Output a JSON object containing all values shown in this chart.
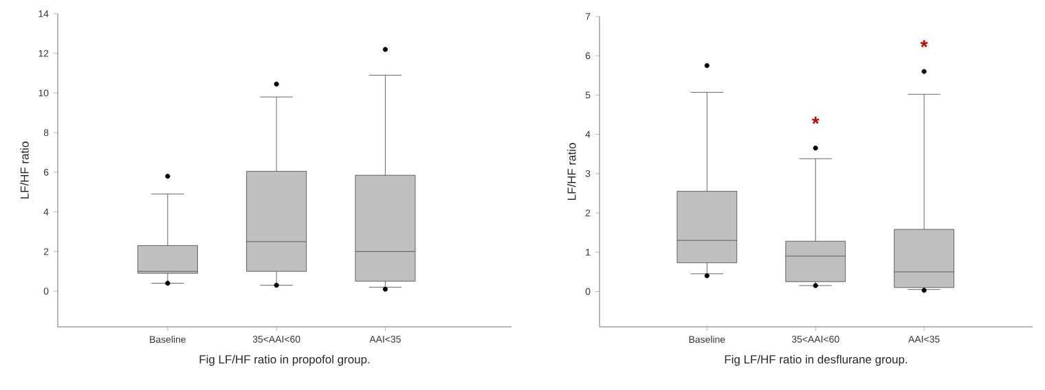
{
  "chart_data": [
    {
      "type": "box",
      "xlabel": "Fig LF/HF ratio in propofol group.",
      "ylabel": "LF/HF ratio",
      "categories": [
        "Baseline",
        "35<AAI<60",
        "AAI<35"
      ],
      "color": "#c0c0c0",
      "boxes": [
        {
          "low": 0.4,
          "q1": 0.9,
          "median": 1.0,
          "q3": 2.3,
          "high": 4.9,
          "outliers": [
            0.4,
            5.8
          ]
        },
        {
          "low": 0.3,
          "q1": 1.0,
          "median": 2.5,
          "q3": 6.05,
          "high": 9.8,
          "outliers": [
            0.3,
            10.45
          ]
        },
        {
          "low": 0.2,
          "q1": 0.5,
          "median": 2.0,
          "q3": 5.85,
          "high": 10.9,
          "outliers": [
            0.1,
            12.2
          ]
        }
      ],
      "ylim": [
        -1.8,
        14
      ],
      "yticks": [
        0,
        2,
        4,
        6,
        8,
        10,
        12,
        14
      ]
    },
    {
      "type": "box",
      "xlabel": "Fig LF/HF ratio in desflurane group.",
      "ylabel": "LF/HF ratio",
      "categories": [
        "Baseline",
        "35<AAI<60",
        "AAI<35"
      ],
      "color": "#c0c0c0",
      "boxes": [
        {
          "low": 0.45,
          "q1": 0.73,
          "median": 1.3,
          "q3": 2.55,
          "high": 5.07,
          "outliers": [
            0.4,
            5.75
          ]
        },
        {
          "low": 0.15,
          "q1": 0.25,
          "median": 0.9,
          "q3": 1.28,
          "high": 3.38,
          "outliers": [
            0.15,
            3.65
          ]
        },
        {
          "low": 0.05,
          "q1": 0.1,
          "median": 0.5,
          "q3": 1.58,
          "high": 5.02,
          "outliers": [
            0.03,
            5.6
          ]
        }
      ],
      "ylim": [
        -0.9,
        7
      ],
      "yticks": [
        0,
        1,
        2,
        3,
        4,
        5,
        6,
        7
      ],
      "annotations": [
        "*",
        "*"
      ]
    }
  ]
}
